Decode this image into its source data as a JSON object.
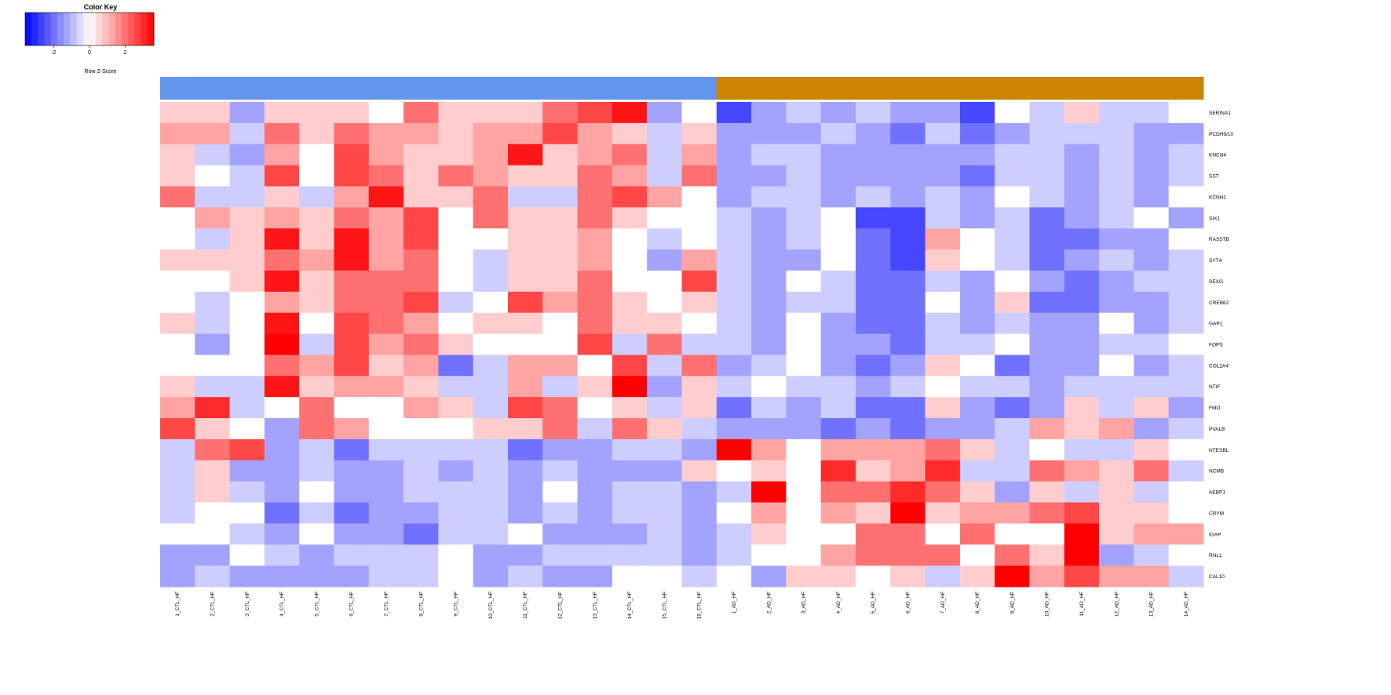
{
  "color_key": {
    "title": "Color Key",
    "xlabel": "Row Z-Score",
    "ticks": [
      "-2",
      "0",
      "2"
    ],
    "tick_values": [
      -2,
      0,
      2
    ],
    "range": [
      -3.6,
      3.6
    ],
    "low_color": "#0000ff",
    "mid_color": "#ffffff",
    "high_color": "#ff0000"
  },
  "chart_data": {
    "type": "heatmap",
    "title": "",
    "xlabel": "",
    "ylabel": "",
    "colorbar_label": "Row Z-Score",
    "value_range": [
      -3.6,
      3.6
    ],
    "column_groups": [
      {
        "color": "#6495ed",
        "count": 16
      },
      {
        "color": "#cd8500",
        "count": 14
      }
    ],
    "rows": [
      "SERINA1",
      "PCDH9/10",
      "KNCN4",
      "SST",
      "KCNH1",
      "SIX1",
      "RASSTB",
      "SYT4",
      "SEXG",
      "CREB62",
      "GAP1",
      "FOPS",
      "COL2A4",
      "NTIF",
      "FMO",
      "PVALB",
      "NTESBL",
      "NCMB",
      "AEBP1",
      "CRYM",
      "IGAP",
      "RNL1",
      "CAL10"
    ],
    "columns": [
      "1_CTL_HF",
      "2_CTL_HF",
      "3_CTL_HF",
      "4_CTL_HF",
      "5_CTL_HF",
      "6_CTL_HF",
      "7_CTL_HF",
      "8_CTL_HF",
      "9_CTL_HF",
      "10_CTL_HF",
      "11_CTL_HF",
      "12_CTL_HF",
      "13_CTL_HF",
      "14_CTL_HF",
      "15_CTL_HF",
      "16_CTL_HF",
      "1_AD_HF",
      "2_AD_HF",
      "3_AD_HF",
      "4_AD_HF",
      "5_AD_HF",
      "6_AD_HF",
      "7_AD_HF",
      "8_AD_HF",
      "9_AD_HF",
      "10_AD_HF",
      "11_AD_HF",
      "12_AD_HF",
      "13_AD_HF",
      "14_AD_HF"
    ],
    "values": [
      [
        0.7,
        0.7,
        -1.3,
        0.7,
        0.7,
        0.7,
        0.0,
        2.0,
        0.7,
        0.7,
        0.7,
        2.0,
        2.6,
        3.3,
        -1.3,
        0.0,
        -2.6,
        -1.3,
        -0.7,
        -1.3,
        -0.7,
        -1.3,
        -1.3,
        -2.6,
        0.0,
        -0.7,
        0.7,
        -0.7,
        -0.7,
        0.0
      ],
      [
        1.3,
        1.3,
        -0.7,
        2.0,
        0.7,
        2.0,
        1.3,
        1.3,
        0.7,
        1.3,
        1.3,
        2.6,
        1.3,
        0.7,
        -0.7,
        0.7,
        -1.3,
        -1.3,
        -1.3,
        -0.7,
        -1.3,
        -2.0,
        -0.7,
        -2.0,
        -1.3,
        -0.7,
        -0.7,
        -0.7,
        -1.3,
        -1.3
      ],
      [
        0.7,
        -0.7,
        -1.3,
        1.3,
        0.0,
        2.6,
        1.3,
        0.7,
        0.7,
        1.3,
        3.3,
        0.7,
        1.3,
        2.0,
        -0.7,
        1.3,
        -1.3,
        -0.7,
        -0.7,
        -1.3,
        -1.3,
        -1.3,
        -1.3,
        -1.3,
        -0.7,
        -0.7,
        -1.3,
        -0.7,
        -1.3,
        -0.7
      ],
      [
        0.7,
        0.0,
        -0.7,
        2.6,
        0.0,
        2.6,
        2.0,
        0.7,
        2.0,
        1.3,
        0.7,
        0.7,
        2.0,
        1.3,
        -0.7,
        2.0,
        -1.3,
        -1.3,
        -0.7,
        -1.3,
        -1.3,
        -1.3,
        -1.3,
        -2.0,
        -0.7,
        -0.7,
        -1.3,
        -0.7,
        -1.3,
        -0.7
      ],
      [
        2.0,
        -0.7,
        -0.7,
        0.7,
        -0.7,
        1.3,
        3.3,
        0.7,
        0.7,
        2.0,
        -0.7,
        -0.7,
        2.0,
        2.6,
        1.3,
        0.0,
        -1.3,
        -0.7,
        -0.7,
        -1.3,
        -0.7,
        -1.3,
        -0.7,
        -1.3,
        0.0,
        -0.7,
        -1.3,
        -0.7,
        -1.3,
        0.0
      ],
      [
        0.0,
        1.3,
        0.7,
        1.3,
        0.7,
        2.0,
        1.3,
        2.6,
        0.0,
        2.0,
        0.7,
        0.7,
        2.0,
        0.7,
        0.0,
        0.0,
        -0.7,
        -1.3,
        -0.7,
        0.0,
        -2.6,
        -2.6,
        -0.7,
        -1.3,
        -0.7,
        -2.0,
        -1.3,
        -0.7,
        0.0,
        -1.3
      ],
      [
        0.0,
        -0.7,
        0.7,
        3.3,
        0.7,
        3.3,
        1.3,
        2.6,
        0.0,
        0.0,
        0.7,
        0.7,
        1.3,
        0.0,
        -0.7,
        0.0,
        -0.7,
        -1.3,
        -0.7,
        0.0,
        -2.0,
        -2.6,
        1.3,
        0.0,
        -0.7,
        -2.0,
        -2.0,
        -1.3,
        -1.3,
        0.0
      ],
      [
        0.7,
        0.7,
        0.7,
        2.0,
        1.3,
        3.3,
        1.3,
        2.0,
        0.0,
        -0.7,
        0.7,
        0.7,
        1.3,
        0.0,
        -1.3,
        1.3,
        -0.7,
        -1.3,
        -1.3,
        0.0,
        -2.0,
        -2.6,
        0.7,
        0.0,
        -0.7,
        -2.0,
        -1.3,
        -0.7,
        -1.3,
        -0.7
      ],
      [
        0.0,
        0.0,
        0.7,
        3.3,
        0.7,
        2.0,
        2.0,
        2.0,
        0.0,
        -0.7,
        0.7,
        0.7,
        2.0,
        0.0,
        0.0,
        2.6,
        -0.7,
        -1.3,
        0.0,
        -0.7,
        -2.0,
        -2.0,
        -0.7,
        -1.3,
        0.0,
        -1.3,
        -2.0,
        -1.3,
        -0.7,
        -0.7
      ],
      [
        0.0,
        -0.7,
        0.0,
        1.3,
        0.7,
        2.0,
        2.0,
        2.6,
        -0.7,
        0.0,
        2.6,
        1.3,
        2.0,
        0.7,
        0.0,
        0.7,
        -0.7,
        -1.3,
        -0.7,
        -0.7,
        -2.0,
        -2.0,
        0.0,
        -1.3,
        0.7,
        -2.0,
        -2.0,
        -1.3,
        -1.3,
        -0.7
      ],
      [
        0.7,
        -0.7,
        0.0,
        3.3,
        0.0,
        2.6,
        2.0,
        1.3,
        0.0,
        0.7,
        0.7,
        0.0,
        2.0,
        0.7,
        0.7,
        0.0,
        -0.7,
        -1.3,
        0.0,
        -1.3,
        -2.0,
        -2.0,
        -0.7,
        -1.3,
        -0.7,
        -1.3,
        -1.3,
        0.0,
        -1.3,
        -0.7
      ],
      [
        0.0,
        -1.3,
        0.0,
        3.6,
        -0.7,
        2.6,
        1.3,
        2.0,
        0.7,
        0.0,
        0.0,
        0.0,
        2.6,
        -0.7,
        2.0,
        -0.7,
        -0.7,
        -1.3,
        0.0,
        -1.3,
        -1.3,
        -2.0,
        -0.7,
        -0.7,
        0.0,
        -1.3,
        -1.3,
        -0.7,
        -0.7,
        0.0
      ],
      [
        0.0,
        0.0,
        0.0,
        2.0,
        1.3,
        2.6,
        0.7,
        1.3,
        -2.0,
        -0.7,
        1.3,
        1.3,
        0.0,
        2.6,
        -0.7,
        2.0,
        -1.3,
        -0.7,
        0.0,
        -1.3,
        -2.0,
        -1.3,
        0.7,
        0.0,
        -2.0,
        -1.3,
        -1.3,
        0.0,
        -1.3,
        -0.7
      ],
      [
        0.7,
        -0.7,
        -0.7,
        3.3,
        0.7,
        1.3,
        1.3,
        0.7,
        -0.7,
        -0.7,
        1.3,
        -0.7,
        0.7,
        3.8,
        -1.3,
        0.7,
        -0.7,
        0.0,
        -0.7,
        -0.7,
        -1.3,
        -0.7,
        0.0,
        -0.7,
        -0.7,
        -1.3,
        -0.7,
        -0.7,
        -0.7,
        -0.7
      ],
      [
        1.3,
        3.0,
        -0.7,
        0.0,
        2.0,
        0.0,
        0.0,
        1.3,
        0.7,
        -0.7,
        2.6,
        2.0,
        0.0,
        0.7,
        -0.7,
        0.7,
        -2.0,
        -0.7,
        -1.3,
        -0.7,
        -2.0,
        -2.0,
        0.7,
        -1.3,
        -2.0,
        -1.3,
        0.7,
        -0.7,
        0.7,
        -1.3
      ],
      [
        2.6,
        0.7,
        0.0,
        -1.3,
        2.0,
        1.3,
        0.0,
        0.0,
        0.0,
        0.7,
        0.7,
        2.0,
        -0.7,
        2.0,
        0.7,
        -0.7,
        -1.3,
        -1.3,
        -1.3,
        -2.0,
        -1.3,
        -2.0,
        -1.3,
        -1.3,
        -0.7,
        1.3,
        0.7,
        1.3,
        -1.3,
        -0.7
      ],
      [
        -0.7,
        2.0,
        2.6,
        -1.3,
        -0.7,
        -2.0,
        -0.7,
        -0.7,
        -0.7,
        -0.7,
        -2.0,
        -1.3,
        -1.3,
        -0.7,
        -0.7,
        -1.3,
        3.6,
        1.3,
        0.0,
        1.3,
        1.3,
        1.3,
        2.0,
        0.7,
        -0.7,
        0.0,
        -0.7,
        -0.7,
        0.7,
        0.0
      ],
      [
        -0.7,
        0.7,
        -1.3,
        -1.3,
        -0.7,
        -1.3,
        -1.3,
        -0.7,
        -1.3,
        -0.7,
        -1.3,
        -0.7,
        -1.3,
        -1.3,
        -1.3,
        0.7,
        0.0,
        0.7,
        0.0,
        3.0,
        0.7,
        1.3,
        3.0,
        -0.7,
        -0.7,
        2.0,
        1.3,
        0.7,
        2.0,
        -0.7
      ],
      [
        -0.7,
        0.7,
        -0.7,
        -1.3,
        0.0,
        -1.3,
        -1.3,
        -0.7,
        -0.7,
        -0.7,
        -1.3,
        0.0,
        -1.3,
        -0.7,
        -0.7,
        -1.3,
        -0.7,
        3.6,
        0.0,
        2.0,
        2.0,
        3.0,
        2.0,
        0.7,
        -1.3,
        0.7,
        -0.7,
        0.7,
        -0.7,
        0.0
      ],
      [
        -0.7,
        0.0,
        0.0,
        -2.0,
        -0.7,
        -2.0,
        -1.3,
        -1.3,
        -0.7,
        -0.7,
        -1.3,
        -0.7,
        -1.3,
        -0.7,
        -0.7,
        -1.3,
        0.0,
        1.3,
        0.0,
        1.3,
        0.7,
        3.6,
        0.7,
        1.3,
        1.3,
        2.0,
        2.6,
        0.7,
        0.7,
        0.0
      ],
      [
        0.0,
        0.0,
        -0.7,
        -1.3,
        0.0,
        -1.3,
        -1.3,
        -2.0,
        -0.7,
        -0.7,
        0.0,
        -1.3,
        -1.3,
        -1.3,
        -0.7,
        -1.3,
        -0.7,
        0.7,
        0.0,
        0.0,
        2.0,
        2.0,
        0.0,
        2.0,
        0.0,
        0.0,
        3.6,
        0.7,
        1.3,
        1.3
      ],
      [
        -1.3,
        -1.3,
        0.0,
        -0.7,
        -1.3,
        -0.7,
        -0.7,
        -0.7,
        0.0,
        -1.3,
        -1.3,
        -0.7,
        -0.7,
        -0.7,
        -0.7,
        -1.3,
        -0.7,
        0.0,
        0.0,
        1.3,
        2.0,
        2.0,
        2.0,
        0.0,
        2.0,
        0.7,
        3.8,
        -1.3,
        -0.7,
        0.0
      ],
      [
        -1.3,
        -0.7,
        -1.3,
        -1.3,
        -1.3,
        -1.3,
        -0.7,
        -0.7,
        0.0,
        -1.3,
        -0.7,
        -1.3,
        -1.3,
        0.0,
        0.0,
        -0.7,
        0.0,
        -1.3,
        0.7,
        0.7,
        0.0,
        0.7,
        -0.7,
        0.7,
        3.8,
        1.3,
        2.6,
        1.3,
        1.3,
        -0.7
      ]
    ]
  }
}
